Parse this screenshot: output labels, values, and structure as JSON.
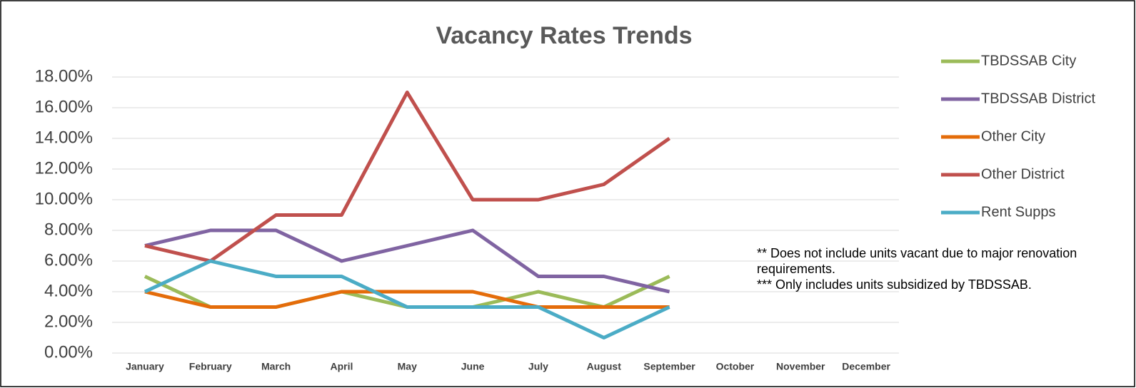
{
  "chart_data": {
    "type": "line",
    "title": "Vacancy Rates Trends",
    "categories": [
      "January",
      "February",
      "March",
      "April",
      "May",
      "June",
      "July",
      "August",
      "September",
      "October",
      "November",
      "December"
    ],
    "series": [
      {
        "name": "TBDSSAB City",
        "color": "#9bbb59",
        "values": [
          5,
          3,
          3,
          4,
          3,
          3,
          4,
          3,
          5,
          null,
          null,
          null
        ]
      },
      {
        "name": "TBDSSAB District",
        "color": "#8064a2",
        "values": [
          7,
          8,
          8,
          6,
          7,
          8,
          5,
          5,
          4,
          null,
          null,
          null
        ]
      },
      {
        "name": "Other City",
        "color": "#e46c0a",
        "values": [
          4,
          3,
          3,
          4,
          4,
          4,
          3,
          3,
          3,
          null,
          null,
          null
        ]
      },
      {
        "name": "Other District",
        "color": "#c0504d",
        "values": [
          7,
          6,
          9,
          9,
          17,
          10,
          10,
          11,
          14,
          null,
          null,
          null
        ]
      },
      {
        "name": "Rent Supps",
        "color": "#4bacc6",
        "values": [
          4,
          6,
          5,
          5,
          3,
          3,
          3,
          1,
          3,
          null,
          null,
          null
        ]
      }
    ],
    "ylim": [
      0,
      18
    ],
    "yticks": [
      {
        "value": 0,
        "label": "0.00%"
      },
      {
        "value": 2,
        "label": "2.00%"
      },
      {
        "value": 4,
        "label": "4.00%"
      },
      {
        "value": 6,
        "label": "6.00%"
      },
      {
        "value": 8,
        "label": "8.00%"
      },
      {
        "value": 10,
        "label": "10.00%"
      },
      {
        "value": 12,
        "label": "12.00%"
      },
      {
        "value": 14,
        "label": "14.00%"
      },
      {
        "value": 16,
        "label": "16.00%"
      },
      {
        "value": 18,
        "label": "18.00%"
      }
    ],
    "grid": true,
    "legend": "right",
    "annotations": [
      "** Does not include units vacant due to major renovation requirements.",
      "*** Only includes units subsidized by TBDSSAB."
    ]
  }
}
